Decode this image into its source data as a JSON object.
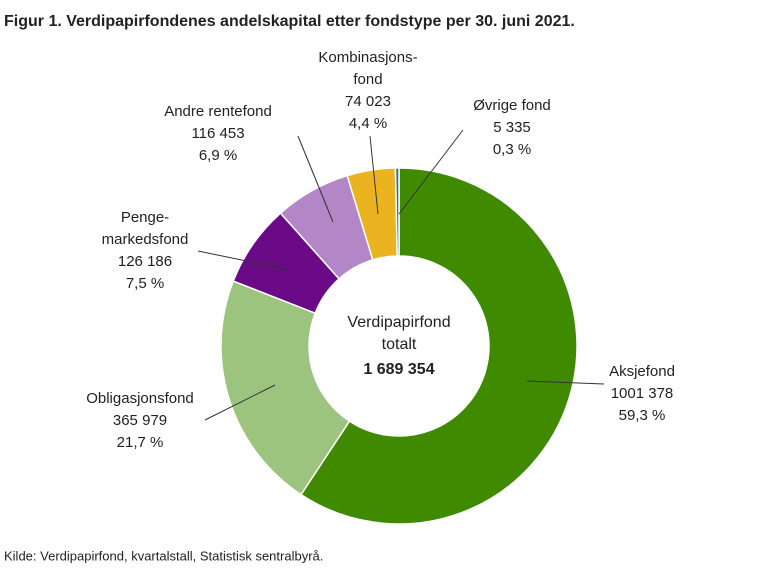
{
  "chart_data": {
    "type": "donut",
    "title": "Figur 1. Verdipapirfondenes  andelskapital  etter fondstype per 30. juni 2021.",
    "categories": [
      "Aksjefond",
      "Obligasjonsfond",
      "Penge-\nmarkedsfond",
      "Andre rentefond",
      "Kombinasjons-\nfond",
      "Øvrige fond"
    ],
    "values": [
      1001378,
      365979,
      126186,
      116453,
      74023,
      5335
    ],
    "value_labels": [
      "1001 378",
      "365 979",
      "126 186",
      "116 453",
      "74 023",
      "5 335"
    ],
    "percents": [
      59.3,
      21.7,
      7.5,
      6.9,
      4.4,
      0.3
    ],
    "percent_labels": [
      "59,3 %",
      "21,7 %",
      "7,5 %",
      "6,9 %",
      "4,4 %",
      "0,3 %"
    ],
    "colors": [
      "#3f8a00",
      "#9cc47f",
      "#6a0a86",
      "#b386c8",
      "#ebb31f",
      "#2d6b9c"
    ],
    "center_text": [
      "Verdipapirfond",
      "totalt"
    ],
    "total_label": "1 689 354",
    "source": "Kilde: Verdipapirfond, kvartalstall, Statistisk sentralbyrå."
  }
}
